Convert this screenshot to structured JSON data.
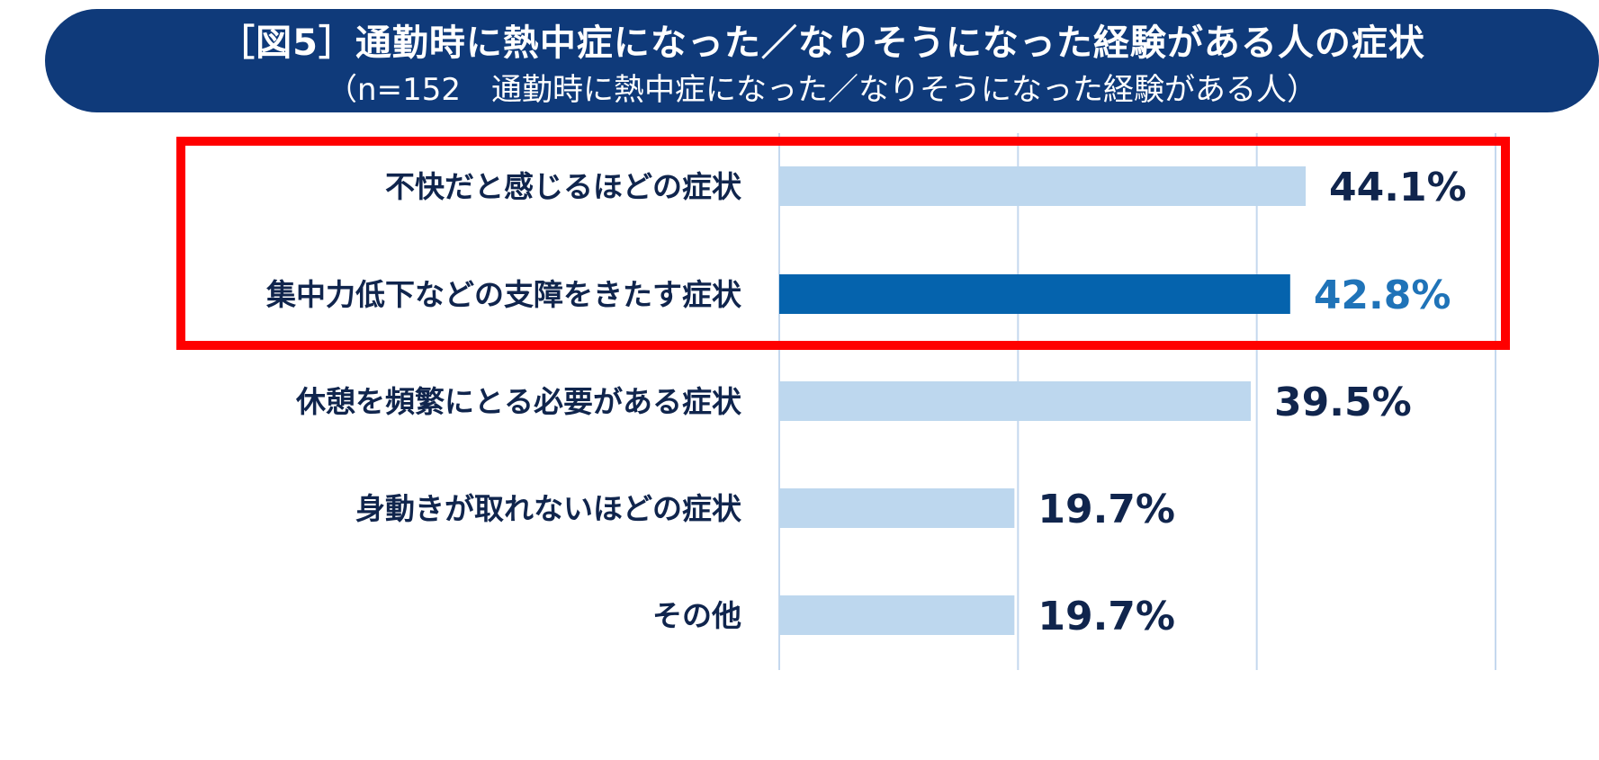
{
  "header": {
    "title": "［図5］通勤時に熱中症になった／なりそうになった経験がある人の症状",
    "subtitle": "（n=152　通勤時に熱中症になった／なりそうになった経験がある人）"
  },
  "chart_data": {
    "type": "bar",
    "orientation": "horizontal",
    "categories": [
      "不快だと感じるほどの症状",
      "集中力低下などの支障をきたす症状",
      "休憩を頻繁にとる必要がある症状",
      "身動きが取れないほどの症状",
      "その他"
    ],
    "values": [
      44.1,
      42.8,
      39.5,
      19.7,
      19.7
    ],
    "value_labels": [
      "44.1%",
      "42.8%",
      "39.5%",
      "19.7%",
      "19.7%"
    ],
    "highlight_index": 1,
    "highlight_box_rows": [
      0,
      1
    ],
    "xlim": [
      0,
      60
    ],
    "gridlines_x": [
      0,
      20,
      40,
      60
    ],
    "grid": true,
    "colors": {
      "bar": "#bdd7ee",
      "bar_highlight": "#0563ad",
      "label": "#10254d",
      "label_highlight": "#1f73b8",
      "grid": "#c5d8ee",
      "highlight_box": "#ff0000",
      "banner": "#0f3a7a"
    }
  }
}
